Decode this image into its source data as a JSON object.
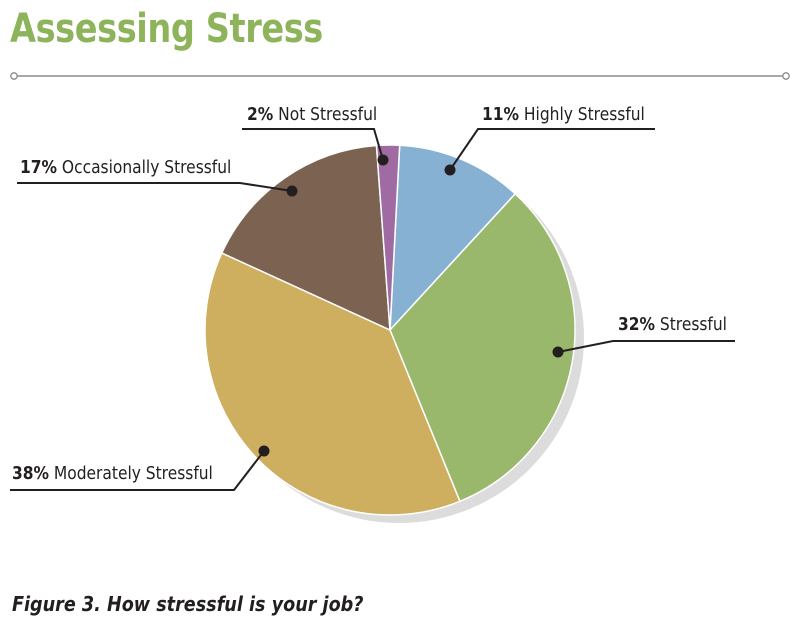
{
  "header": {
    "title": "Assessing Stress",
    "title_color": "#8db45a"
  },
  "figure": {
    "caption": "Figure 3.  How stressful is your job?"
  },
  "chart_data": {
    "type": "pie",
    "title": "Assessing Stress",
    "start_angle_deg": 3,
    "direction": "clockwise",
    "slices": [
      {
        "label": "Highly Stressful",
        "value": 11,
        "percent_text": "11%",
        "color": "#86b1d3"
      },
      {
        "label": "Stressful",
        "value": 32,
        "percent_text": "32%",
        "color": "#99b86c"
      },
      {
        "label": "Moderately Stressful",
        "value": 38,
        "percent_text": "38%",
        "color": "#ceae5f"
      },
      {
        "label": "Occasionally Stressful",
        "value": 17,
        "percent_text": "17%",
        "color": "#7c6250"
      },
      {
        "label": "Not Stressful",
        "value": 2,
        "percent_text": "2%",
        "color": "#a06aa2"
      }
    ],
    "legend": "none",
    "labels": "callouts"
  }
}
